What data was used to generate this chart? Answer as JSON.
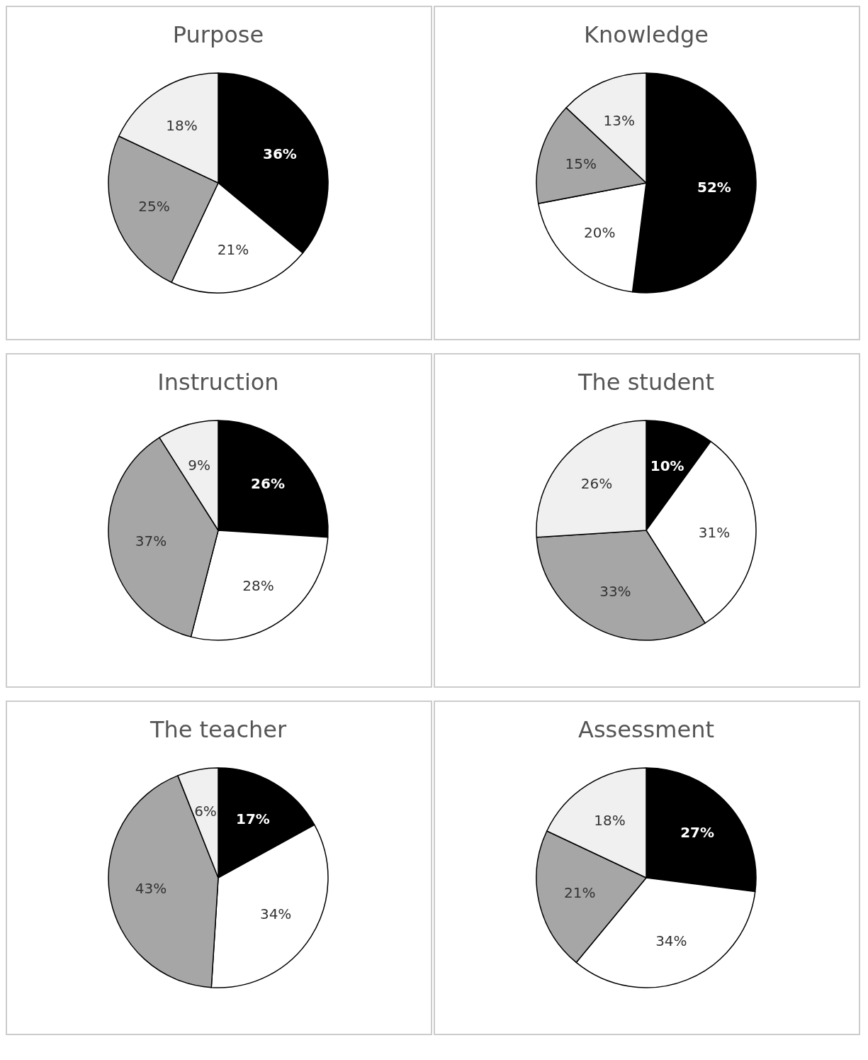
{
  "chart_data": [
    {
      "type": "pie",
      "title": "Purpose",
      "categories": [
        null,
        null,
        null,
        null
      ],
      "values": [
        36,
        21,
        25,
        18
      ],
      "value_labels": [
        "36%",
        "21%",
        "25%",
        "18%"
      ],
      "colors": [
        "#000000",
        "#ffffff",
        "#a6a6a6",
        "#f0f0f0"
      ]
    },
    {
      "type": "pie",
      "title": "Knowledge",
      "categories": [
        null,
        null,
        null,
        null
      ],
      "values": [
        52,
        20,
        15,
        13
      ],
      "value_labels": [
        "52%",
        "20%",
        "15%",
        "13%"
      ],
      "colors": [
        "#000000",
        "#ffffff",
        "#a6a6a6",
        "#f0f0f0"
      ]
    },
    {
      "type": "pie",
      "title": "Instruction",
      "categories": [
        null,
        null,
        null,
        null
      ],
      "values": [
        26,
        28,
        37,
        9
      ],
      "value_labels": [
        "26%",
        "28%",
        "37%",
        "9%"
      ],
      "colors": [
        "#000000",
        "#ffffff",
        "#a6a6a6",
        "#f0f0f0"
      ]
    },
    {
      "type": "pie",
      "title": "The student",
      "categories": [
        null,
        null,
        null,
        null
      ],
      "values": [
        10,
        31,
        33,
        26
      ],
      "value_labels": [
        "10%",
        "31%",
        "33%",
        "26%"
      ],
      "colors": [
        "#000000",
        "#ffffff",
        "#a6a6a6",
        "#f0f0f0"
      ]
    },
    {
      "type": "pie",
      "title": "The teacher",
      "categories": [
        null,
        null,
        null,
        null
      ],
      "values": [
        17,
        34,
        43,
        6
      ],
      "value_labels": [
        "17%",
        "34%",
        "43%",
        "6%"
      ],
      "colors": [
        "#000000",
        "#ffffff",
        "#a6a6a6",
        "#f0f0f0"
      ]
    },
    {
      "type": "pie",
      "title": "Assessment",
      "categories": [
        null,
        null,
        null,
        null
      ],
      "values": [
        27,
        34,
        21,
        18
      ],
      "value_labels": [
        "27%",
        "34%",
        "21%",
        "18%"
      ],
      "colors": [
        "#000000",
        "#ffffff",
        "#a6a6a6",
        "#f0f0f0"
      ]
    }
  ]
}
